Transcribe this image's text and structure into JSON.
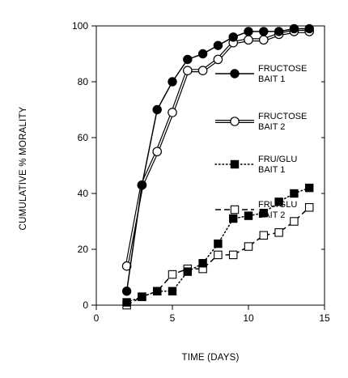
{
  "chart_data": {
    "type": "line",
    "title": "",
    "xlabel": "TIME (DAYS)",
    "ylabel": "CUMULATIVE % MORALITY",
    "xlim": [
      0,
      15
    ],
    "ylim": [
      0,
      100
    ],
    "xticks": [
      0,
      5,
      10,
      15
    ],
    "yticks": [
      0,
      20,
      40,
      60,
      80,
      100
    ],
    "grid": false,
    "legend_position": "right",
    "series": [
      {
        "key": "fructose_bait_1",
        "label_lines": [
          "FRUCTOSE",
          "BAIT 1"
        ],
        "marker": "filled-circle",
        "line_style": "solid",
        "x": [
          2,
          3,
          4,
          5,
          6,
          7,
          8,
          9,
          10,
          11,
          12,
          13,
          14
        ],
        "y": [
          5,
          43,
          70,
          80,
          88,
          90,
          93,
          96,
          98,
          98,
          98,
          99,
          99
        ]
      },
      {
        "key": "fructose_bait_2",
        "label_lines": [
          "FRUCTOSE",
          "BAIT 2"
        ],
        "marker": "open-circle",
        "line_style": "double",
        "x": [
          2,
          3,
          4,
          5,
          6,
          7,
          8,
          9,
          10,
          11,
          12,
          13,
          14
        ],
        "y": [
          14,
          43,
          55,
          69,
          84,
          84,
          88,
          94,
          95,
          95,
          97,
          98,
          98
        ]
      },
      {
        "key": "fru_glu_bait_1",
        "label_lines": [
          "FRU/GLU",
          "BAIT 1"
        ],
        "marker": "filled-square",
        "line_style": "dotted",
        "x": [
          2,
          3,
          4,
          5,
          6,
          7,
          8,
          9,
          10,
          11,
          12,
          13,
          14
        ],
        "y": [
          1,
          3,
          5,
          5,
          12,
          15,
          22,
          31,
          32,
          33,
          37,
          40,
          42
        ]
      },
      {
        "key": "fru_glu_bait_2",
        "label_lines": [
          "FRU/GLU",
          "BAIT 2"
        ],
        "marker": "open-square",
        "line_style": "dashed",
        "x": [
          2,
          3,
          4,
          5,
          6,
          7,
          8,
          9,
          10,
          11,
          12,
          13,
          14
        ],
        "y": [
          0,
          3,
          5,
          11,
          13,
          13,
          18,
          18,
          21,
          25,
          26,
          30,
          35
        ]
      }
    ]
  }
}
